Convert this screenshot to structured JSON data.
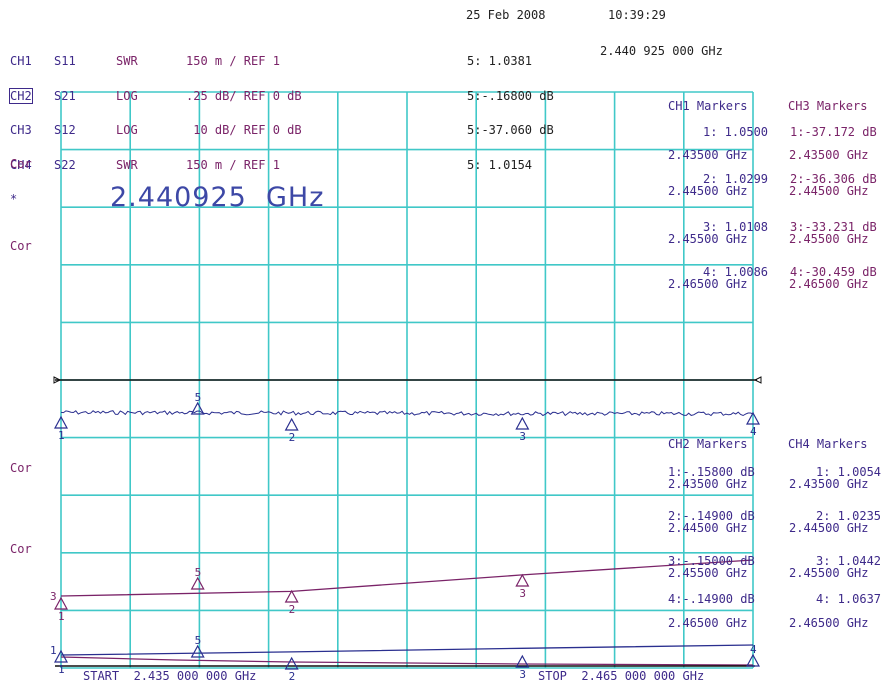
{
  "header": {
    "date": "25 Feb 2008",
    "time": "10:39:29",
    "asterisk": "*",
    "channels": [
      {
        "ch": "CH1",
        "param": "S11",
        "format": "SWR",
        "scale": "150 m / REF 1",
        "marker": "5: 1.0381"
      },
      {
        "ch": "CH2",
        "param": "S21",
        "format": "LOG",
        "scale": ".25 dB/ REF 0 dB",
        "marker": "5:-.16800 dB"
      },
      {
        "ch": "CH3",
        "param": "S12",
        "format": "LOG",
        "scale": " 10 dB/ REF 0 dB",
        "marker": "5:-37.060 dB"
      },
      {
        "ch": "CH4",
        "param": "S22",
        "format": "SWR",
        "scale": "150 m / REF 1",
        "marker": "5: 1.0154"
      }
    ],
    "marker_freq": "2.440 925 000 GHz"
  },
  "side_labels": [
    "Cor",
    "Cor",
    "Cor",
    "Cor"
  ],
  "big_freq": "2.440925  GHz",
  "marker_tables": {
    "ch1": {
      "title": "CH1 Markers",
      "rows": [
        {
          "val": "1: 1.0500",
          "freq": "2.43500 GHz"
        },
        {
          "val": "2: 1.0299",
          "freq": "2.44500 GHz"
        },
        {
          "val": "3: 1.0108",
          "freq": "2.45500 GHz"
        },
        {
          "val": "4: 1.0086",
          "freq": "2.46500 GHz"
        }
      ]
    },
    "ch3": {
      "title": "CH3 Markers",
      "rows": [
        {
          "val": "1:-37.172 dB",
          "freq": "2.43500 GHz"
        },
        {
          "val": "2:-36.306 dB",
          "freq": "2.44500 GHz"
        },
        {
          "val": "3:-33.231 dB",
          "freq": "2.45500 GHz"
        },
        {
          "val": "4:-30.459 dB",
          "freq": "2.46500 GHz"
        }
      ]
    },
    "ch2": {
      "title": "CH2 Markers",
      "rows": [
        {
          "val": "1:-.15800 dB",
          "freq": "2.43500 GHz"
        },
        {
          "val": "2:-.14900 dB",
          "freq": "2.44500 GHz"
        },
        {
          "val": "3:-.15000 dB",
          "freq": "2.45500 GHz"
        },
        {
          "val": "4:-.14900 dB",
          "freq": "2.46500 GHz"
        }
      ]
    },
    "ch4": {
      "title": "CH4 Markers",
      "rows": [
        {
          "val": "1: 1.0054",
          "freq": "2.43500 GHz"
        },
        {
          "val": "2: 1.0235",
          "freq": "2.44500 GHz"
        },
        {
          "val": "3: 1.0442",
          "freq": "2.45500 GHz"
        },
        {
          "val": "4: 1.0637",
          "freq": "2.46500 GHz"
        }
      ]
    }
  },
  "footer": {
    "start": "START  2.435 000 000 GHz",
    "stop": "STOP  2.465 000 000 GHz"
  },
  "colors": {
    "grid": "#40c8c8",
    "ch1": "#2a2f8f",
    "ch2": "#2a2f8f",
    "ch3": "#7a2368",
    "ch4": "#2a2f8f",
    "ref": "#111111"
  },
  "chart_data": [
    {
      "type": "line",
      "series": [
        {
          "name": "CH1",
          "x": [
            2.435,
            2.445,
            2.455,
            2.465
          ],
          "y": [
            1.05,
            1.0299,
            1.0108,
            1.0086
          ]
        },
        {
          "name": "CH2",
          "x": [
            2.435,
            2.445,
            2.455,
            2.465
          ],
          "y": [
            -0.158,
            -0.149,
            -0.15,
            -0.149
          ]
        }
      ],
      "markers": [
        {
          "label": "1",
          "x": 2.435
        },
        {
          "label": "5",
          "x": 2.440925
        },
        {
          "label": "2",
          "x": 2.445
        },
        {
          "label": "3",
          "x": 2.455
        },
        {
          "label": "4",
          "x": 2.465
        }
      ],
      "xlim": [
        2.435,
        2.465
      ]
    },
    {
      "type": "line",
      "series": [
        {
          "name": "CH3",
          "x": [
            2.435,
            2.445,
            2.455,
            2.465
          ],
          "y": [
            -37.172,
            -36.306,
            -33.231,
            -30.459
          ]
        },
        {
          "name": "CH4",
          "x": [
            2.435,
            2.445,
            2.455,
            2.465
          ],
          "y": [
            1.0054,
            1.0235,
            1.0442,
            1.0637
          ]
        }
      ],
      "markers": [
        {
          "label": "1",
          "x": 2.435
        },
        {
          "label": "5",
          "x": 2.440925
        },
        {
          "label": "2",
          "x": 2.445
        },
        {
          "label": "3",
          "x": 2.455
        },
        {
          "label": "4",
          "x": 2.465
        }
      ],
      "xlim": [
        2.435,
        2.465
      ]
    }
  ]
}
